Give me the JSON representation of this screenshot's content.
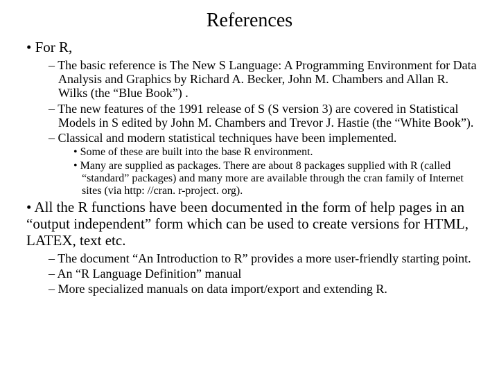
{
  "title": "References",
  "items": {
    "l1_a": "For R,",
    "l2_a": "The basic reference is The New S Language: A Programming Environment for Data Analysis and Graphics by Richard A. Becker, John M. Chambers and Allan R. Wilks (the “Blue Book”) .",
    "l2_b": "The new features of the 1991 release of S (S version 3) are covered in Statistical Models in S edited by John M. Chambers and Trevor J. Hastie (the “White Book”).",
    "l2_c": "Classical and modern statistical techniques have been implemented.",
    "l3_a": "Some of these are built into the base R environment.",
    "l3_b": "Many are supplied as packages.   There are about 8 packages supplied with R (called “standard” packages) and many more are available through the cran family of Internet sites (via http: //cran. r-project. org).",
    "l1_b": "All the R functions have been documented in the form of help pages in an “output independent” form which can be used to create versions for HTML, LATEX, text etc.",
    "l2_d": "The document “An Introduction to R” provides a more user-friendly starting point.",
    "l2_e": "An “R Language Definition” manual",
    "l2_f": "More specialized manuals on data import/export and extending R."
  },
  "style": {
    "background_color": "#ffffff",
    "text_color": "#000000",
    "font_family": "Times New Roman",
    "title_fontsize": 28,
    "lvl1_fontsize": 21,
    "lvl2_fontsize": 18,
    "lvl3_fontsize": 16
  }
}
